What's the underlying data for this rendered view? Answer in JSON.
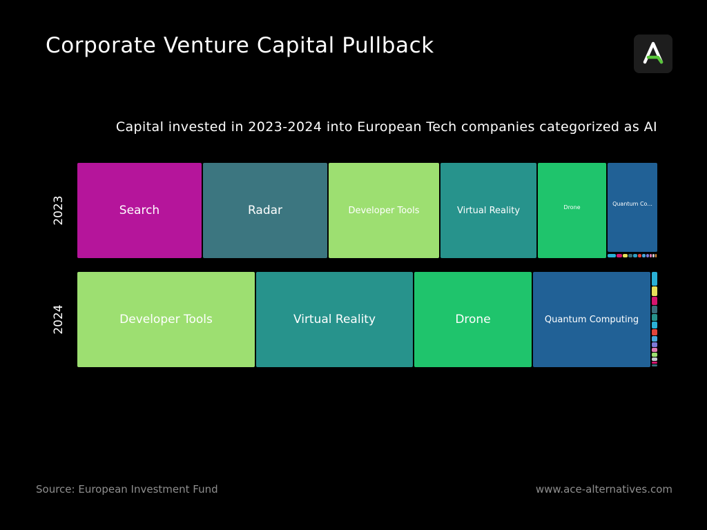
{
  "title": "Corporate Venture Capital Pullback",
  "logo": {
    "icon": "ace-logo-icon",
    "letter": "A"
  },
  "footer": {
    "source": "Source: European Investment Fund",
    "website": "www.ace-alternatives.com"
  },
  "colors": {
    "background": "#000000",
    "search": "#b5159b",
    "radar": "#3c7680",
    "developer_tools": "#9ddf71",
    "virtual_reality": "#27938c",
    "drone": "#1fc46c",
    "quantum_computing": "#216196",
    "logo_accent": "#58c63a"
  },
  "chart_data": {
    "type": "treemap",
    "title": "Capital invested in 2023-2024 into European Tech companies categorized as AI",
    "rows": [
      {
        "label": "2023",
        "tiles": [
          {
            "name": "Search",
            "value": 177,
            "color": "#b5159b"
          },
          {
            "name": "Radar",
            "value": 177,
            "color": "#3c7680"
          },
          {
            "name": "Developer Tools",
            "value": 157,
            "color": "#9ddf71"
          },
          {
            "name": "Virtual Reality",
            "value": 137,
            "color": "#27938c"
          },
          {
            "name": "Drone",
            "value": 97,
            "color": "#1fc46c"
          },
          {
            "name": "Quantum Co...",
            "value": 70,
            "color": "#216196"
          }
        ],
        "small_segments": [
          {
            "value": 12,
            "color": "#2ab0d6"
          },
          {
            "value": 8,
            "color": "#d6156f"
          },
          {
            "value": 7,
            "color": "#e7e05a"
          },
          {
            "value": 6,
            "color": "#3a6f7c"
          },
          {
            "value": 6,
            "color": "#2e9ec4"
          },
          {
            "value": 5,
            "color": "#e3453a"
          },
          {
            "value": 5,
            "color": "#4aa6d8"
          },
          {
            "value": 4,
            "color": "#7e7ad8"
          },
          {
            "value": 3,
            "color": "#e07ab4"
          },
          {
            "value": 3,
            "color": "#c6c9d2"
          },
          {
            "value": 2,
            "color": "#e8963a"
          }
        ]
      },
      {
        "label": "2024",
        "tiles": [
          {
            "name": "Developer Tools",
            "value": 258,
            "color": "#9ddf71"
          },
          {
            "name": "Virtual Reality",
            "value": 228,
            "color": "#27938c"
          },
          {
            "name": "Drone",
            "value": 171,
            "color": "#1fc46c"
          },
          {
            "name": "Quantum Computing",
            "value": 171,
            "color": "#216196"
          }
        ],
        "small_segments": [
          {
            "value": 18,
            "color": "#2ab0d6"
          },
          {
            "value": 12,
            "color": "#e7e05a"
          },
          {
            "value": 11,
            "color": "#d6156f"
          },
          {
            "value": 10,
            "color": "#3a6f7c"
          },
          {
            "value": 9,
            "color": "#27938c"
          },
          {
            "value": 9,
            "color": "#2ab0d6"
          },
          {
            "value": 8,
            "color": "#e3453a"
          },
          {
            "value": 7,
            "color": "#4aa6d8"
          },
          {
            "value": 6,
            "color": "#7e7ad8"
          },
          {
            "value": 5,
            "color": "#e07ab4"
          },
          {
            "value": 5,
            "color": "#9ddf71"
          },
          {
            "value": 4,
            "color": "#c6c9d2"
          },
          {
            "value": 3,
            "color": "#d6156f"
          },
          {
            "value": 3,
            "color": "#3a6f7c"
          }
        ]
      }
    ],
    "legend": "none",
    "grid": false
  }
}
